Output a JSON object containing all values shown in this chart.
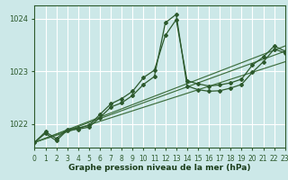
{
  "xlabel": "Graphe pression niveau de la mer (hPa)",
  "bg_color": "#cce8e8",
  "grid_color": "#ffffff",
  "line_color": "#2d5a2d",
  "line_color2": "#3d6e3d",
  "x_ticks": [
    0,
    1,
    2,
    3,
    4,
    5,
    6,
    7,
    8,
    9,
    10,
    11,
    12,
    13,
    14,
    15,
    16,
    17,
    18,
    19,
    20,
    21,
    22,
    23
  ],
  "xlim": [
    0,
    23
  ],
  "ylim": [
    1021.55,
    1024.25
  ],
  "yticks": [
    1022,
    1023,
    1024
  ],
  "series1": [
    1021.65,
    1021.85,
    1021.72,
    1021.9,
    1021.92,
    1021.97,
    1022.18,
    1022.38,
    1022.48,
    1022.62,
    1022.88,
    1023.02,
    1023.68,
    1023.98,
    1022.82,
    1022.76,
    1022.72,
    1022.74,
    1022.78,
    1022.85,
    1023.12,
    1023.27,
    1023.48,
    1023.38
  ],
  "series2": [
    1021.65,
    1021.82,
    1021.68,
    1021.88,
    1021.9,
    1021.94,
    1022.12,
    1022.32,
    1022.4,
    1022.54,
    1022.75,
    1022.9,
    1023.92,
    1024.08,
    1022.72,
    1022.65,
    1022.62,
    1022.63,
    1022.68,
    1022.75,
    1022.98,
    1023.18,
    1023.42,
    1023.35
  ],
  "series3_x": [
    0,
    23
  ],
  "series3_y": [
    1021.65,
    1023.38
  ],
  "series4_x": [
    0,
    23
  ],
  "series4_y": [
    1021.65,
    1023.18
  ],
  "series5_x": [
    0,
    23
  ],
  "series5_y": [
    1021.65,
    1023.48
  ],
  "tick_fontsize": 5.5,
  "ylabel_fontsize": 6.0,
  "xlabel_fontsize": 6.5
}
